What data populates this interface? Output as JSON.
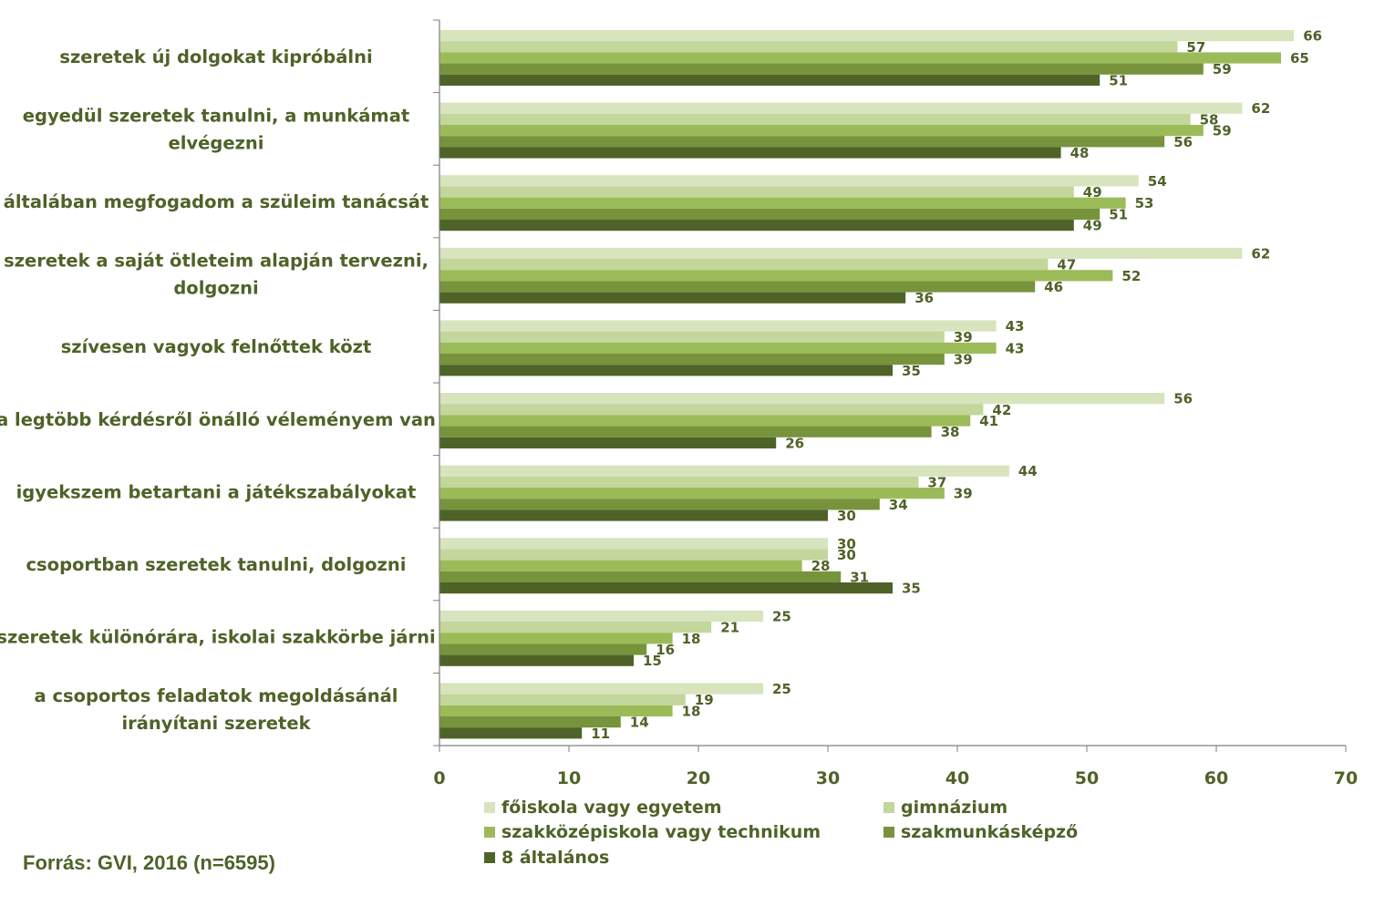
{
  "chart_data": {
    "type": "bar",
    "orientation": "horizontal",
    "categories": [
      [
        "szeretek új dolgokat kipróbálni"
      ],
      [
        "egyedül szeretek tanulni, a munkámat",
        "elvégezni"
      ],
      [
        "általában megfogadom a szüleim tanácsát"
      ],
      [
        "szeretek a saját ötleteim alapján tervezni,",
        "dolgozni"
      ],
      [
        "szívesen vagyok felnőttek közt"
      ],
      [
        "a legtöbb kérdésről önálló véleményem van"
      ],
      [
        "igyekszem betartani a játékszabályokat"
      ],
      [
        "csoportban szeretek tanulni, dolgozni"
      ],
      [
        "szeretek különórára, iskolai szakkörbe járni"
      ],
      [
        "a csoportos feladatok megoldásánál",
        "irányítani szeretek"
      ]
    ],
    "series": [
      {
        "name": "főiskola vagy egyetem",
        "color": "#d7e4bd",
        "values": [
          66,
          62,
          54,
          62,
          43,
          56,
          44,
          30,
          25,
          25
        ]
      },
      {
        "name": "gimnázium",
        "color": "#c3d69b",
        "values": [
          57,
          58,
          49,
          47,
          39,
          42,
          37,
          30,
          21,
          19
        ]
      },
      {
        "name": "szakközépiskola vagy technikum",
        "color": "#9bbb59",
        "values": [
          65,
          59,
          53,
          52,
          43,
          41,
          39,
          28,
          18,
          18
        ]
      },
      {
        "name": "szakmunkásképző",
        "color": "#77933c",
        "values": [
          59,
          56,
          51,
          46,
          39,
          38,
          34,
          31,
          16,
          14
        ]
      },
      {
        "name": "8 általános",
        "color": "#4f6228",
        "values": [
          51,
          48,
          49,
          36,
          35,
          26,
          30,
          35,
          15,
          11
        ]
      }
    ],
    "xlim": [
      0,
      70
    ],
    "xticks": [
      0,
      10,
      20,
      30,
      40,
      50,
      60,
      70
    ],
    "legend_position": "bottom",
    "grid": false
  },
  "source": "Forrás: GVI, 2016 (n=6595)"
}
